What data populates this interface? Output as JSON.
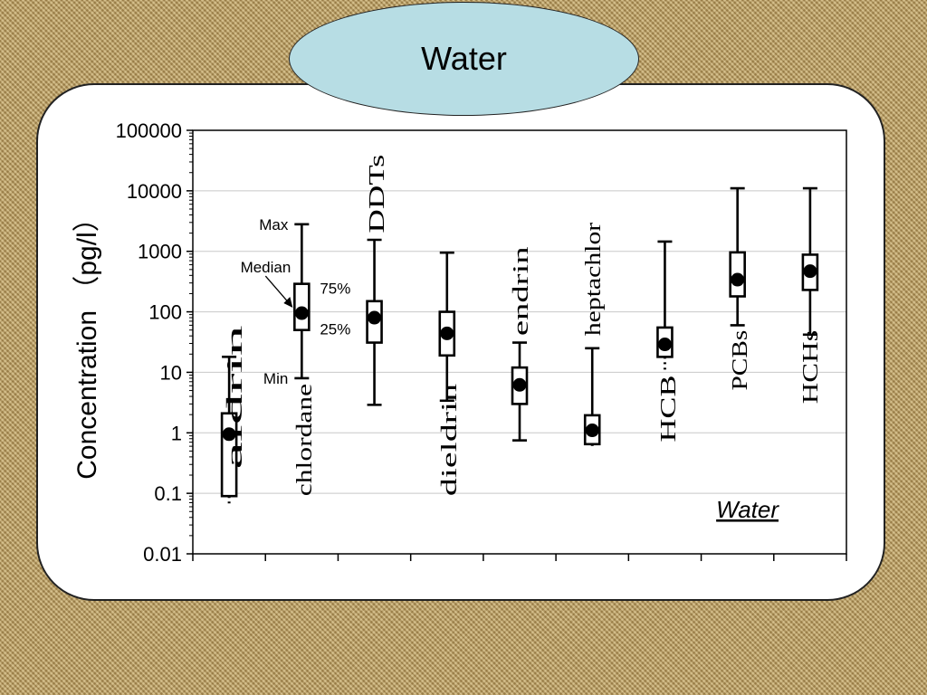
{
  "slide": {
    "title": "Water"
  },
  "chart_data": {
    "type": "box",
    "title": "",
    "ylabel": "Concentration （pg/l）",
    "yscale": "log",
    "ylim": [
      0.01,
      100000
    ],
    "ytick_labels": [
      "0.01",
      "0.1",
      "1",
      "10",
      "100",
      "1000",
      "10000",
      "100000"
    ],
    "grid": true,
    "annotation": "Water",
    "legend_labels": {
      "max": "Max",
      "median": "Median",
      "p75": "75%",
      "p25": "25%",
      "min": "Min"
    },
    "series": [
      {
        "name": "aldrin",
        "min": 0.06,
        "q1": 0.09,
        "median": 0.95,
        "q3": 2.1,
        "max": 18
      },
      {
        "name": "chlordane",
        "min": 8,
        "q1": 50,
        "median": 95,
        "q3": 290,
        "max": 2800
      },
      {
        "name": "DDTs",
        "min": 2.9,
        "q1": 31,
        "median": 80,
        "q3": 150,
        "max": 1550
      },
      {
        "name": "dieldrin",
        "min": 3.4,
        "q1": 19,
        "median": 44,
        "q3": 100,
        "max": 950
      },
      {
        "name": "endrin",
        "min": 0.75,
        "q1": 3,
        "median": 6.2,
        "q3": 12,
        "max": 31
      },
      {
        "name": "heptachlor",
        "min": 0.55,
        "q1": 0.65,
        "median": 1.1,
        "q3": 1.95,
        "max": 25
      },
      {
        "name": "HCB",
        "min": 10,
        "q1": 18,
        "median": 29,
        "q3": 55,
        "max": 1450
      },
      {
        "name": "PCBs",
        "min": 60,
        "q1": 180,
        "median": 340,
        "q3": 960,
        "max": 11000
      },
      {
        "name": "HCHs",
        "min": 42,
        "q1": 230,
        "median": 470,
        "q3": 880,
        "max": 11000
      }
    ]
  }
}
